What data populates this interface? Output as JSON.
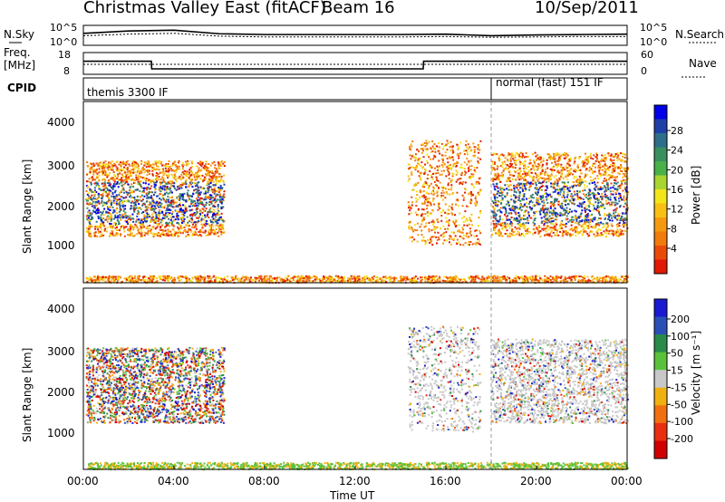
{
  "header": {
    "title": "Christmas Valley East (fitACF)",
    "beam": "Beam 16",
    "date": "10/Sep/2011"
  },
  "top_panels": {
    "nsky_label": "N.Sky",
    "nsearch_label": "N.Search",
    "freq_label_1": "Freq.",
    "freq_label_2": "[MHz]",
    "nave_label": "Nave",
    "cpid_label": "CPID",
    "noise_left_ticks": [
      "10^5",
      "10^0"
    ],
    "noise_right_ticks": [
      "10^5",
      "10^0"
    ],
    "freq_left_ticks": [
      "18",
      "8"
    ],
    "freq_right_ticks": [
      "60",
      "0"
    ],
    "cpid_left": "themis 3300 IF",
    "cpid_right": "normal (fast) 151 IF"
  },
  "x_axis": {
    "label": "Time UT",
    "ticks": [
      "00:00",
      "04:00",
      "08:00",
      "12:00",
      "16:00",
      "20:00",
      "00:00"
    ]
  },
  "power_panel": {
    "ylabel": "Slant Range [km]",
    "yticks": [
      "4000",
      "3000",
      "2000",
      "1000"
    ],
    "colorbar_label": "Power [dB]",
    "colorbar_ticks": [
      "28",
      "24",
      "20",
      "16",
      "12",
      "8",
      "4"
    ],
    "colorbar_colors": [
      "#0000e6",
      "#1e3fa8",
      "#2e6e8a",
      "#3a8f5e",
      "#49b04a",
      "#a8d530",
      "#f2e51a",
      "#f8c014",
      "#f59a10",
      "#f07a0c",
      "#ea4a08",
      "#e01a05"
    ]
  },
  "velocity_panel": {
    "ylabel": "Slant Range [km]",
    "yticks": [
      "4000",
      "3000",
      "2000",
      "1000"
    ],
    "colorbar_label": "Velocity [m s⁻¹]",
    "colorbar_ticks": [
      "200",
      "100",
      "50",
      "15",
      "-15",
      "-50",
      "-100",
      "-200"
    ],
    "colorbar_colors": [
      "#1a1ad0",
      "#2a50b8",
      "#2a8a4a",
      "#5ac23a",
      "#c8c8c8",
      "#f0b010",
      "#f07010",
      "#e83010",
      "#d00000"
    ]
  },
  "chart_data": [
    {
      "type": "line",
      "title": "Christmas Valley East (fitACF) Beam 16",
      "panel": "noise",
      "x": [
        "00:00",
        "02:00",
        "04:00",
        "06:00",
        "08:00",
        "10:00",
        "12:00",
        "14:00",
        "16:00",
        "18:00",
        "20:00",
        "22:00",
        "24:00"
      ],
      "series": [
        {
          "name": "N.Sky",
          "values": [
            3.0,
            3.6,
            3.8,
            2.9,
            2.7,
            2.7,
            2.7,
            2.7,
            2.8,
            2.4,
            2.6,
            2.7,
            2.8
          ]
        },
        {
          "name": "N.Search",
          "values": [
            2.4,
            2.8,
            3.0,
            2.3,
            2.1,
            2.1,
            2.1,
            2.1,
            2.2,
            2.0,
            2.1,
            2.2,
            2.2
          ]
        }
      ],
      "ylabel": "N.Sky / N.Search",
      "ylim": [
        0,
        5
      ]
    },
    {
      "type": "line",
      "panel": "frequency",
      "x": [
        "00:00",
        "03:00",
        "03:01",
        "15:00",
        "15:01",
        "18:00",
        "18:01",
        "24:00"
      ],
      "series": [
        {
          "name": "Freq.",
          "values": [
            14,
            14,
            10.5,
            10.5,
            14,
            14,
            14,
            14
          ]
        },
        {
          "name": "Nave",
          "values": [
            20,
            20,
            20,
            20,
            20,
            20,
            20,
            20
          ]
        }
      ],
      "ylabel": "Freq. [MHz]",
      "ylim": [
        8,
        18
      ]
    },
    {
      "type": "heatmap",
      "panel": "power",
      "ylabel": "Slant Range [km]",
      "xlabel": "Time UT",
      "xlim": [
        "00:00",
        "24:00"
      ],
      "ylim": [
        180,
        4500
      ],
      "colorbar": {
        "label": "Power [dB]",
        "ticks": [
          28,
          24,
          20,
          16,
          12,
          8,
          4
        ]
      }
    },
    {
      "type": "heatmap",
      "panel": "velocity",
      "ylabel": "Slant Range [km]",
      "xlabel": "Time UT",
      "xlim": [
        "00:00",
        "24:00"
      ],
      "ylim": [
        180,
        4500
      ],
      "colorbar": {
        "label": "Velocity [m s⁻¹]",
        "ticks": [
          200,
          100,
          50,
          15,
          -15,
          -50,
          -100,
          -200
        ]
      }
    }
  ]
}
